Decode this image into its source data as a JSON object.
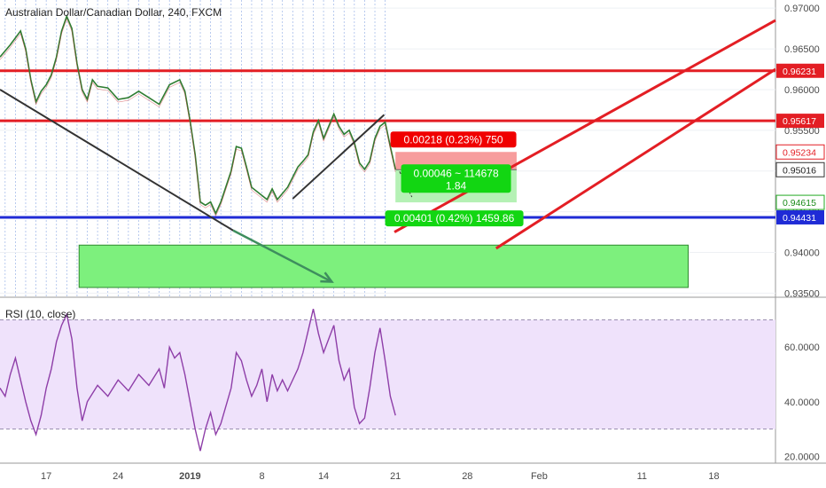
{
  "chart_data": [
    {
      "type": "line",
      "title": "Australian Dollar/Canadian Dollar, 240, FXCM",
      "ylim": [
        0.9345,
        0.971
      ],
      "y_ticks": [
        "0.97000",
        "0.96500",
        "0.96000",
        "0.95500",
        "0.95000",
        "0.94500",
        "0.94000",
        "0.93500"
      ],
      "y_tick_values": [
        0.97,
        0.965,
        0.96,
        0.955,
        0.95,
        0.945,
        0.94,
        0.935
      ],
      "x_ticks": [
        {
          "label": "17",
          "day": 17
        },
        {
          "label": "24",
          "day": 24
        },
        {
          "label": "2019",
          "day": 31
        },
        {
          "label": "8",
          "day": 38
        },
        {
          "label": "14",
          "day": 44
        },
        {
          "label": "21",
          "day": 51
        },
        {
          "label": "28",
          "day": 58
        },
        {
          "label": "Feb",
          "day": 65
        },
        {
          "label": "11",
          "day": 75
        },
        {
          "label": "18",
          "day": 82
        }
      ],
      "xlim": [
        12.5,
        88.0
      ],
      "close_series": [
        [
          12.5,
          0.964
        ],
        [
          13.5,
          0.9655
        ],
        [
          14.5,
          0.9672
        ],
        [
          15.0,
          0.965
        ],
        [
          15.5,
          0.9612
        ],
        [
          16.0,
          0.9585
        ],
        [
          16.5,
          0.9598
        ],
        [
          17.0,
          0.9606
        ],
        [
          17.5,
          0.9618
        ],
        [
          18.0,
          0.964
        ],
        [
          18.5,
          0.9672
        ],
        [
          19.0,
          0.969
        ],
        [
          19.5,
          0.9675
        ],
        [
          20.0,
          0.9632
        ],
        [
          20.5,
          0.96
        ],
        [
          21.0,
          0.9588
        ],
        [
          21.5,
          0.9612
        ],
        [
          22.0,
          0.9604
        ],
        [
          23.0,
          0.9602
        ],
        [
          24.0,
          0.9588
        ],
        [
          25.0,
          0.959
        ],
        [
          26.0,
          0.9598
        ],
        [
          27.0,
          0.959
        ],
        [
          28.0,
          0.9582
        ],
        [
          29.0,
          0.9606
        ],
        [
          30.0,
          0.9612
        ],
        [
          30.5,
          0.9598
        ],
        [
          31.0,
          0.9562
        ],
        [
          31.5,
          0.952
        ],
        [
          32.0,
          0.9462
        ],
        [
          32.5,
          0.9458
        ],
        [
          33.0,
          0.9462
        ],
        [
          33.5,
          0.9448
        ],
        [
          34.0,
          0.9462
        ],
        [
          35.0,
          0.95
        ],
        [
          35.5,
          0.953
        ],
        [
          36.0,
          0.9528
        ],
        [
          36.5,
          0.9505
        ],
        [
          37.0,
          0.948
        ],
        [
          38.0,
          0.947
        ],
        [
          38.5,
          0.9465
        ],
        [
          39.0,
          0.9478
        ],
        [
          39.5,
          0.9465
        ],
        [
          40.5,
          0.948
        ],
        [
          41.5,
          0.9505
        ],
        [
          42.0,
          0.9512
        ],
        [
          42.5,
          0.952
        ],
        [
          43.0,
          0.9548
        ],
        [
          43.5,
          0.9562
        ],
        [
          44.0,
          0.954
        ],
        [
          44.5,
          0.9555
        ],
        [
          45.0,
          0.957
        ],
        [
          45.5,
          0.9555
        ],
        [
          46.0,
          0.9545
        ],
        [
          46.5,
          0.955
        ],
        [
          47.0,
          0.9535
        ],
        [
          47.5,
          0.951
        ],
        [
          48.0,
          0.9502
        ],
        [
          48.5,
          0.9512
        ],
        [
          49.0,
          0.954
        ],
        [
          49.5,
          0.9555
        ],
        [
          50.0,
          0.956
        ],
        [
          50.5,
          0.953
        ],
        [
          51.0,
          0.9502
        ]
      ],
      "rsi": {
        "title": "RSI (10, close)",
        "ylim": [
          17.5,
          76.0
        ],
        "y_ticks": [
          "60.0000",
          "40.0000",
          "20.0000"
        ],
        "y_tick_values": [
          60,
          40,
          20
        ],
        "upper_band": 70,
        "lower_band": 30,
        "values": [
          [
            12.5,
            45
          ],
          [
            13.0,
            42
          ],
          [
            13.5,
            50
          ],
          [
            14.0,
            56
          ],
          [
            14.5,
            48
          ],
          [
            15.0,
            40
          ],
          [
            15.5,
            33
          ],
          [
            16.0,
            28
          ],
          [
            16.5,
            35
          ],
          [
            17.0,
            45
          ],
          [
            17.5,
            52
          ],
          [
            18.0,
            62
          ],
          [
            18.5,
            68
          ],
          [
            19.0,
            72
          ],
          [
            19.5,
            63
          ],
          [
            20.0,
            45
          ],
          [
            20.5,
            33
          ],
          [
            21.0,
            40
          ],
          [
            22.0,
            46
          ],
          [
            23.0,
            42
          ],
          [
            24.0,
            48
          ],
          [
            25.0,
            44
          ],
          [
            26.0,
            50
          ],
          [
            27.0,
            46
          ],
          [
            28.0,
            52
          ],
          [
            28.5,
            45
          ],
          [
            29.0,
            60
          ],
          [
            29.5,
            56
          ],
          [
            30.0,
            58
          ],
          [
            30.5,
            50
          ],
          [
            31.0,
            40
          ],
          [
            31.5,
            30
          ],
          [
            32.0,
            22
          ],
          [
            32.5,
            30
          ],
          [
            33.0,
            36
          ],
          [
            33.5,
            28
          ],
          [
            34.0,
            32
          ],
          [
            35.0,
            45
          ],
          [
            35.5,
            58
          ],
          [
            36.0,
            55
          ],
          [
            36.5,
            48
          ],
          [
            37.0,
            42
          ],
          [
            37.5,
            46
          ],
          [
            38.0,
            52
          ],
          [
            38.5,
            40
          ],
          [
            39.0,
            50
          ],
          [
            39.5,
            44
          ],
          [
            40.0,
            48
          ],
          [
            40.5,
            44
          ],
          [
            41.5,
            52
          ],
          [
            42.0,
            58
          ],
          [
            42.5,
            66
          ],
          [
            43.0,
            74
          ],
          [
            43.5,
            65
          ],
          [
            44.0,
            58
          ],
          [
            44.5,
            63
          ],
          [
            45.0,
            68
          ],
          [
            45.5,
            55
          ],
          [
            46.0,
            48
          ],
          [
            46.5,
            52
          ],
          [
            47.0,
            38
          ],
          [
            47.5,
            32
          ],
          [
            48.0,
            34
          ],
          [
            48.5,
            45
          ],
          [
            49.0,
            58
          ],
          [
            49.5,
            67
          ],
          [
            50.0,
            55
          ],
          [
            50.5,
            42
          ],
          [
            51.0,
            35
          ]
        ]
      },
      "horizontal_lines": [
        {
          "price": 0.96231,
          "color": "#e31e24",
          "label": "0.96231"
        },
        {
          "price": 0.95617,
          "color": "#e31e24",
          "label": "0.95617"
        },
        {
          "price": 0.94431,
          "color": "#1f2bd6",
          "label": "0.94431"
        }
      ],
      "price_tags": [
        {
          "price": 0.95234,
          "label": "0.95234",
          "bg": "#ffffff",
          "fg": "#e31e24",
          "border": "#e31e24"
        },
        {
          "price": 0.95016,
          "label": "0.95016",
          "bg": "#ffffff",
          "fg": "#222222",
          "border": "#333333"
        },
        {
          "price": 0.94615,
          "label": "0.94615",
          "bg": "#ffffff",
          "fg": "#1a8a1a",
          "border": "#22aa22"
        }
      ],
      "trend_lines": [
        {
          "x1": 12.5,
          "y1": 0.96,
          "x2": 35.2,
          "y2": 0.9427,
          "color": "#333333"
        },
        {
          "x1": 41.0,
          "y1": 0.9466,
          "x2": 49.9,
          "y2": 0.9569,
          "color": "#333333"
        },
        {
          "x1": 60.8,
          "y1": 0.9405,
          "x2": 88.0,
          "y2": 0.9625,
          "color": "#e31e24"
        },
        {
          "x1": 50.9,
          "y1": 0.9425,
          "x2": 88.0,
          "y2": 0.9685,
          "color": "#e31e24"
        }
      ],
      "arrow": {
        "x1": 35.2,
        "y1": 0.9427,
        "x2": 44.8,
        "y2": 0.9364,
        "color": "#3e8e5e"
      },
      "zone": {
        "x1": 20.2,
        "x2": 79.5,
        "y1": 0.9409,
        "y2": 0.9357,
        "color": "#7df07d"
      },
      "position": {
        "x1": 51.0,
        "x2": 62.8,
        "entry": 0.95016,
        "stop": 0.95234,
        "target": 0.94615,
        "stop_label": "0.00218 (0.23%) 750",
        "mid_label_1": "0.00046 ~ 114678",
        "mid_label_2": "1.84",
        "target_label": "0.00401 (0.42%) 1459.86"
      }
    }
  ]
}
